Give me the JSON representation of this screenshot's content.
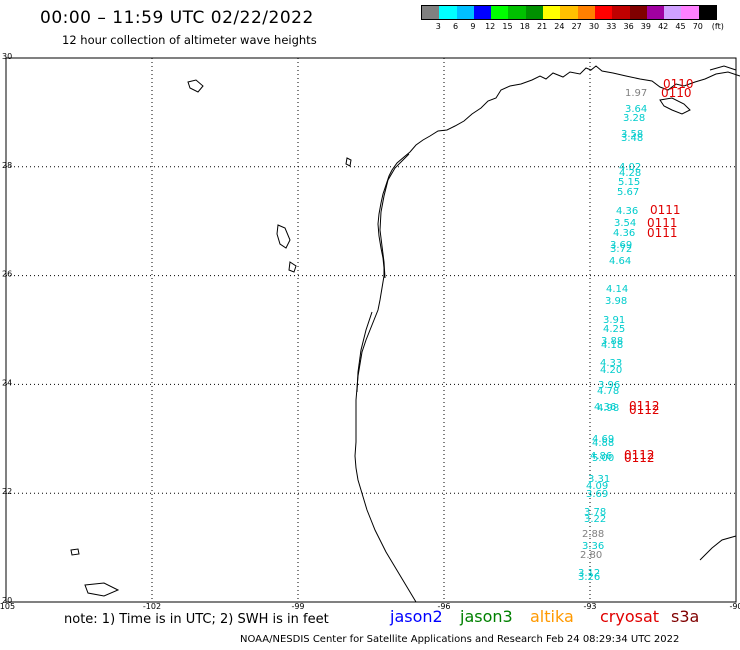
{
  "header": {
    "title": "00:00 – 11:59 UTC 02/22/2022",
    "subtitle": "12 hour collection of altimeter wave heights"
  },
  "scale": {
    "unit": "(ft)",
    "labels": [
      "3",
      "6",
      "9",
      "12",
      "15",
      "18",
      "21",
      "24",
      "27",
      "30",
      "33",
      "36",
      "39",
      "42",
      "45",
      "70"
    ],
    "colors": [
      "#808080",
      "#00ffff",
      "#00bfff",
      "#0000ff",
      "#00ff00",
      "#00c000",
      "#009000",
      "#ffff00",
      "#ffc000",
      "#ff8000",
      "#ff0000",
      "#c00000",
      "#800000",
      "#a000a0",
      "#d0a0ff",
      "#ff80ff",
      "#000000"
    ]
  },
  "axes": {
    "lat_labels": [
      "30",
      "28",
      "26",
      "24",
      "22",
      "20"
    ],
    "lon_labels": [
      "-105",
      "-102",
      "-99",
      "-96",
      "-93",
      "-90"
    ]
  },
  "measurements": [
    {
      "value": "1.97",
      "color": "#808080"
    },
    {
      "value": "3.64",
      "color": "#00cccc"
    },
    {
      "value": "3.28",
      "color": "#00cccc"
    },
    {
      "value": "3.58",
      "color": "#00cccc"
    },
    {
      "value": "3.48",
      "color": "#00cccc"
    },
    {
      "value": "4.02",
      "color": "#00cccc"
    },
    {
      "value": "4.28",
      "color": "#00cccc"
    },
    {
      "value": "5.15",
      "color": "#00cccc"
    },
    {
      "value": "5.67",
      "color": "#00cccc"
    },
    {
      "value": "4.36",
      "color": "#00cccc"
    },
    {
      "value": "3.54",
      "color": "#00cccc"
    },
    {
      "value": "4.36",
      "color": "#00cccc"
    },
    {
      "value": "3.69",
      "color": "#00cccc"
    },
    {
      "value": "3.72",
      "color": "#00cccc"
    },
    {
      "value": "4.64",
      "color": "#00cccc"
    },
    {
      "value": "4.14",
      "color": "#00cccc"
    },
    {
      "value": "3.98",
      "color": "#00cccc"
    },
    {
      "value": "3.91",
      "color": "#00cccc"
    },
    {
      "value": "4.25",
      "color": "#00cccc"
    },
    {
      "value": "3.88",
      "color": "#00cccc"
    },
    {
      "value": "4.18",
      "color": "#00cccc"
    },
    {
      "value": "4.33",
      "color": "#00cccc"
    },
    {
      "value": "4.20",
      "color": "#00cccc"
    },
    {
      "value": "3.96",
      "color": "#00cccc"
    },
    {
      "value": "4.78",
      "color": "#00cccc"
    },
    {
      "value": "4.36",
      "color": "#00cccc"
    },
    {
      "value": "4.98",
      "color": "#00cccc"
    },
    {
      "value": "4.69",
      "color": "#00cccc"
    },
    {
      "value": "4.88",
      "color": "#00cccc"
    },
    {
      "value": "4.86",
      "color": "#00cccc"
    },
    {
      "value": "5.00",
      "color": "#00cccc"
    },
    {
      "value": "3.31",
      "color": "#00cccc"
    },
    {
      "value": "4.09",
      "color": "#00cccc"
    },
    {
      "value": "3.69",
      "color": "#00cccc"
    },
    {
      "value": "3.78",
      "color": "#00cccc"
    },
    {
      "value": "3.22",
      "color": "#00cccc"
    },
    {
      "value": "2.88",
      "color": "#808080"
    },
    {
      "value": "3.36",
      "color": "#00cccc"
    },
    {
      "value": "2.80",
      "color": "#808080"
    },
    {
      "value": "3.12",
      "color": "#00cccc"
    },
    {
      "value": "3.26",
      "color": "#00cccc"
    }
  ],
  "pass_ids": [
    "0110",
    "0110",
    "0111",
    "0111",
    "0111",
    "0112",
    "0112",
    "0112",
    "0112"
  ],
  "notes": {
    "note": "note:  1) Time is in UTC;  2) SWH is in feet",
    "satellites": [
      {
        "name": "jason2",
        "color": "#0000ff"
      },
      {
        "name": "jason3",
        "color": "#008000"
      },
      {
        "name": "altika",
        "color": "#ff9900"
      },
      {
        "name": "cryosat",
        "color": "#e00000"
      },
      {
        "name": "s3a",
        "color": "#800000"
      }
    ],
    "footer": "NOAA/NESDIS Center for Satellite Applications and Research     Feb 24 08:29:34 UTC 2022"
  }
}
